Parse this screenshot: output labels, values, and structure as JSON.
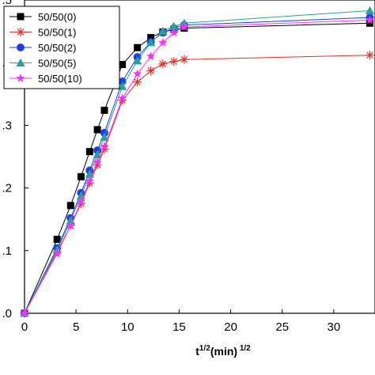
{
  "chart_data": {
    "type": "line",
    "title": "",
    "xlabel": "t1/2(min)1/2",
    "ylabel": "",
    "xlim": [
      0,
      34
    ],
    "ylim": [
      0,
      0.5
    ],
    "x_ticks": [
      0,
      5,
      10,
      15,
      20,
      25,
      30
    ],
    "x_tick_labels": [
      "0",
      "5",
      "10",
      "15",
      "20",
      "25",
      "30"
    ],
    "y_ticks": [
      0,
      0.1,
      0.2,
      0.3,
      0.4,
      0.5
    ],
    "y_tick_labels": [
      ".0",
      ".1",
      ".2",
      ".3",
      ".4",
      ".5"
    ],
    "grid": false,
    "legend_position": "top-left",
    "x": [
      0,
      3.16,
      4.47,
      5.48,
      6.32,
      7.07,
      7.75,
      9.49,
      10.95,
      12.25,
      13.42,
      14.49,
      15.49,
      33.5
    ],
    "series": [
      {
        "name": "50/50(0)",
        "color": "#000000",
        "marker": "square",
        "values": [
          0.0,
          0.118,
          0.172,
          0.218,
          0.258,
          0.293,
          0.324,
          0.397,
          0.424,
          0.44,
          0.449,
          0.453,
          0.455,
          0.463
        ]
      },
      {
        "name": "50/50(1)",
        "color": "#e0302a",
        "marker": "asterisk",
        "values": [
          0.0,
          0.098,
          0.14,
          0.175,
          0.208,
          0.237,
          0.262,
          0.34,
          0.369,
          0.387,
          0.398,
          0.402,
          0.405,
          0.412
        ]
      },
      {
        "name": "50/50(2)",
        "color": "#1f3fe0",
        "marker": "circle",
        "values": [
          0.0,
          0.104,
          0.152,
          0.192,
          0.228,
          0.26,
          0.288,
          0.37,
          0.409,
          0.433,
          0.448,
          0.455,
          0.46,
          0.472
        ]
      },
      {
        "name": "50/50(5)",
        "color": "#2aa198",
        "marker": "triangle",
        "values": [
          0.0,
          0.101,
          0.148,
          0.187,
          0.222,
          0.253,
          0.281,
          0.362,
          0.403,
          0.432,
          0.45,
          0.458,
          0.463,
          0.483
        ]
      },
      {
        "name": "50/50(10)",
        "color": "#ff33ff",
        "marker": "star",
        "values": [
          0.0,
          0.095,
          0.14,
          0.178,
          0.211,
          0.241,
          0.266,
          0.343,
          0.382,
          0.41,
          0.432,
          0.448,
          0.457,
          0.468
        ]
      }
    ]
  }
}
